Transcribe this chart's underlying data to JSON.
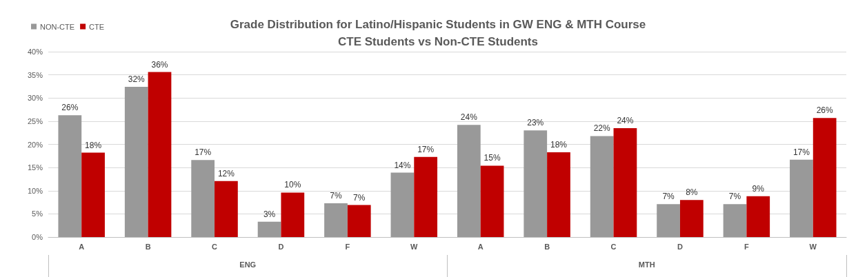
{
  "chart_data": {
    "type": "bar",
    "title": "Grade Distribution for Latino/Hispanic Students in GW ENG & MTH Course",
    "subtitle": "CTE Students vs Non-CTE Students",
    "categories": [
      "A",
      "B",
      "C",
      "D",
      "F",
      "W",
      "A",
      "B",
      "C",
      "D",
      "F",
      "W"
    ],
    "annotations": [
      "ENG",
      "MTH"
    ],
    "series": [
      {
        "name": "NON-CTE",
        "color": "#999999",
        "values": [
          26.3,
          32.4,
          16.6,
          3.3,
          7.3,
          13.9,
          24.2,
          23.0,
          21.8,
          7.1,
          7.1,
          16.7
        ],
        "value_labels": [
          "26%",
          "32%",
          "17%",
          "3%",
          "7%",
          "14%",
          "24%",
          "23%",
          "22%",
          "7%",
          "7%",
          "17%"
        ]
      },
      {
        "name": "CTE",
        "color": "#c00000",
        "values": [
          18.2,
          35.6,
          12.1,
          9.6,
          6.9,
          17.3,
          15.4,
          18.3,
          23.5,
          8.0,
          8.8,
          25.7
        ],
        "value_labels": [
          "18%",
          "36%",
          "12%",
          "10%",
          "7%",
          "17%",
          "15%",
          "18%",
          "24%",
          "8%",
          "9%",
          "26%"
        ]
      }
    ],
    "ylim": [
      0,
      40
    ],
    "yticks": [
      {
        "value": 0,
        "label": "0%"
      },
      {
        "value": 5,
        "label": "5%"
      },
      {
        "value": 10,
        "label": "10%"
      },
      {
        "value": 15,
        "label": "15%"
      },
      {
        "value": 20,
        "label": "20%"
      },
      {
        "value": 25,
        "label": "25%"
      },
      {
        "value": 30,
        "label": "30%"
      },
      {
        "value": 35,
        "label": "35%"
      },
      {
        "value": 40,
        "label": "40%"
      }
    ],
    "grid": "y",
    "legend": "top left"
  }
}
